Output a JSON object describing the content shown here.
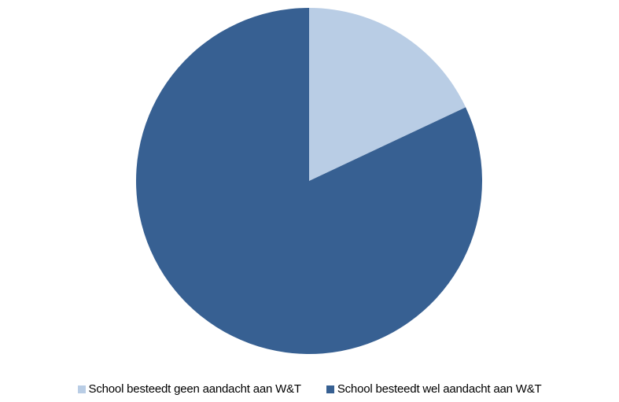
{
  "chart_data": {
    "type": "pie",
    "start_angle_deg": 0,
    "direction": "clockwise",
    "legend_position": "bottom",
    "slices": [
      {
        "label": "School besteedt geen aandacht aan W&T",
        "value": 18,
        "color": "#b9cde5"
      },
      {
        "label": "School besteedt wel aandacht aan W&T",
        "value": 82,
        "color": "#376092"
      }
    ]
  }
}
